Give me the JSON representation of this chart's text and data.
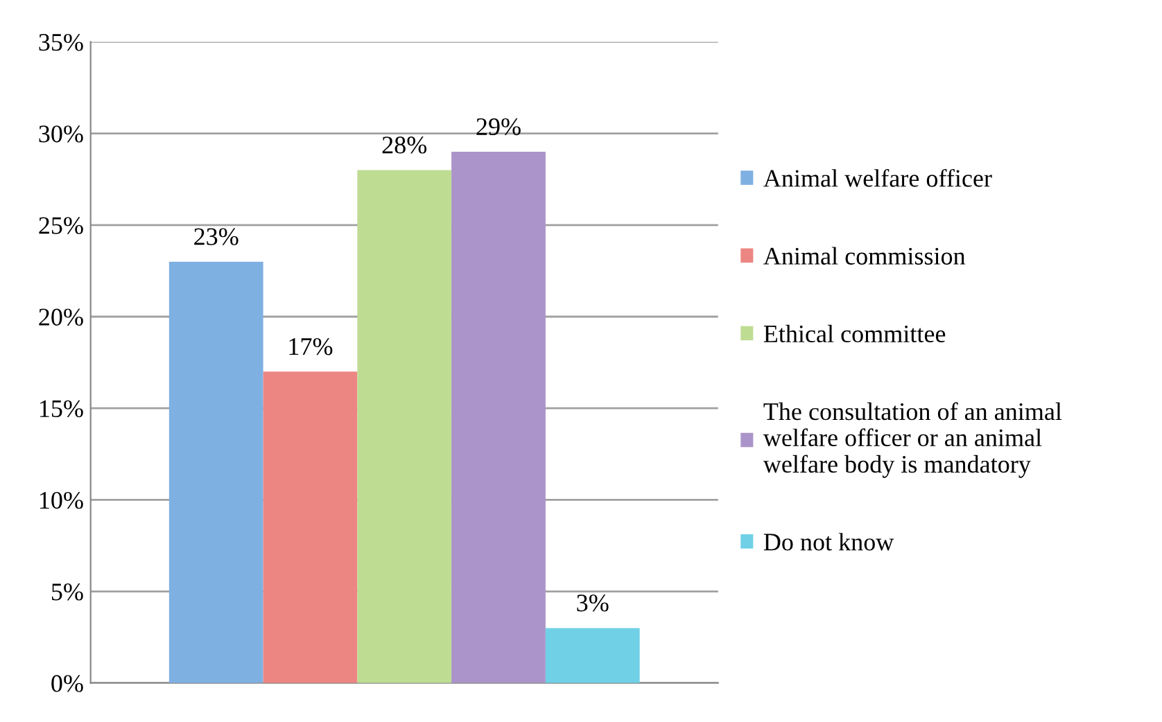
{
  "chart_data": {
    "type": "bar",
    "categories": [
      null
    ],
    "series": [
      {
        "name": "Animal welfare officer",
        "color": "#7fb0e2",
        "values": [
          23
        ],
        "value_labels": [
          "23%"
        ]
      },
      {
        "name": "Animal commission",
        "color": "#ec8683",
        "values": [
          17
        ],
        "value_labels": [
          "17%"
        ]
      },
      {
        "name": "Ethical committee",
        "color": "#bfdc93",
        "values": [
          28
        ],
        "value_labels": [
          "28%"
        ]
      },
      {
        "name": "The consultation of an animal\nwelfare officer or an animal\nwelfare body is mandatory",
        "color": "#ab94c9",
        "values": [
          29
        ],
        "value_labels": [
          "29%"
        ]
      },
      {
        "name": "Do not know",
        "color": "#6fd0e6",
        "values": [
          3
        ],
        "value_labels": [
          "3%"
        ]
      }
    ],
    "ylim": [
      0,
      35
    ],
    "yticks": [
      {
        "value": 0,
        "label": "0%"
      },
      {
        "value": 5,
        "label": "5%"
      },
      {
        "value": 10,
        "label": "10%"
      },
      {
        "value": 15,
        "label": "15%"
      },
      {
        "value": 20,
        "label": "20%"
      },
      {
        "value": 25,
        "label": "25%"
      },
      {
        "value": 30,
        "label": "30%"
      },
      {
        "value": 35,
        "label": "35%"
      }
    ],
    "grid": "y",
    "legend": "right"
  }
}
